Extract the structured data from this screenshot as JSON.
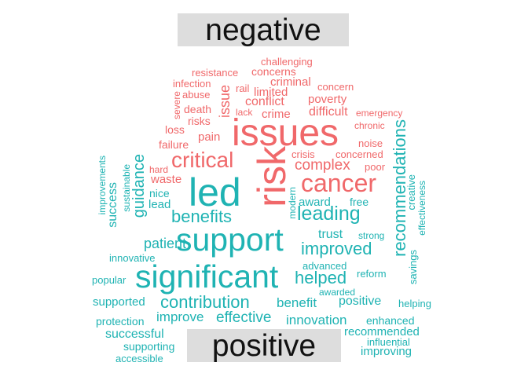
{
  "headers": {
    "negative": "negative",
    "positive": "positive"
  },
  "colors": {
    "negative": "#f0686a",
    "positive": "#1fb3b3",
    "header_bg": "#dddddd",
    "header_text": "#111111"
  },
  "words": {
    "negative": {
      "issues": "issues",
      "risk": "risk",
      "cancer": "cancer",
      "critical": "critical",
      "complex": "complex",
      "issue": "issue",
      "conflict": "conflict",
      "crime": "crime",
      "poverty": "poverty",
      "difficult": "difficult",
      "limited": "limited",
      "criminal": "criminal",
      "concerns": "concerns",
      "challenging": "challenging",
      "resistance": "resistance",
      "infection": "infection",
      "abuse": "abuse",
      "rail": "rail",
      "concern": "concern",
      "severe": "severe",
      "death": "death",
      "lack": "lack",
      "risks": "risks",
      "emergency": "emergency",
      "chronic": "chronic",
      "loss": "loss",
      "pain": "pain",
      "failure": "failure",
      "noise": "noise",
      "crisis": "crisis",
      "concerned": "concerned",
      "poor": "poor",
      "hard": "hard",
      "waste": "waste"
    },
    "positive": {
      "led": "led",
      "support": "support",
      "significant": "significant",
      "leading": "leading",
      "benefits": "benefits",
      "improved": "improved",
      "guidance": "guidance",
      "recommendations": "recommendations",
      "contribution": "contribution",
      "helped": "helped",
      "effective": "effective",
      "innovation": "innovation",
      "improve": "improve",
      "benefit": "benefit",
      "positive": "positive",
      "successful": "successful",
      "supported": "supported",
      "patient": "patient",
      "trust": "trust",
      "success": "success",
      "lead": "lead",
      "nice": "nice",
      "award": "award",
      "free": "free",
      "modern": "modern",
      "sustainable": "sustainable",
      "improvements": "improvements",
      "creative": "creative",
      "effectiveness": "effectiveness",
      "strong": "strong",
      "savings": "savings",
      "reform": "reform",
      "advanced": "advanced",
      "innovative": "innovative",
      "popular": "popular",
      "awarded": "awarded",
      "helping": "helping",
      "protection": "protection",
      "enhanced": "enhanced",
      "recommended": "recommended",
      "supporting": "supporting",
      "influential": "influential",
      "improving": "improving",
      "accessible": "accessible"
    }
  }
}
